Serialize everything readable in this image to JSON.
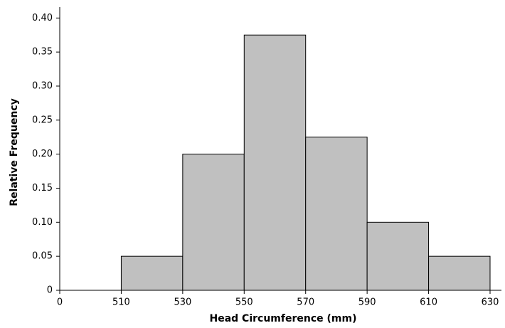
{
  "chart_data": {
    "type": "histogram",
    "x_label": "Head Circumference (mm)",
    "y_label": "Relative Frequency",
    "bins": [
      510,
      530,
      550,
      570,
      590,
      610,
      630
    ],
    "values": [
      0.05,
      0.2,
      0.375,
      0.225,
      0.1,
      0.05
    ],
    "color": "#c0c0c0",
    "xlim": [
      0,
      630
    ],
    "xticks": [
      0,
      510,
      530,
      550,
      570,
      590,
      610,
      630
    ],
    "ylim": [
      0,
      0.416
    ],
    "yticks": [
      0,
      0.05,
      {
        "value": 0.1,
        "label": "0.10"
      },
      0.15,
      {
        "value": 0.2,
        "label": "0.20"
      },
      0.25,
      {
        "value": 0.3,
        "label": "0.30"
      },
      0.35,
      {
        "value": 0.4,
        "label": "0.40"
      }
    ]
  }
}
